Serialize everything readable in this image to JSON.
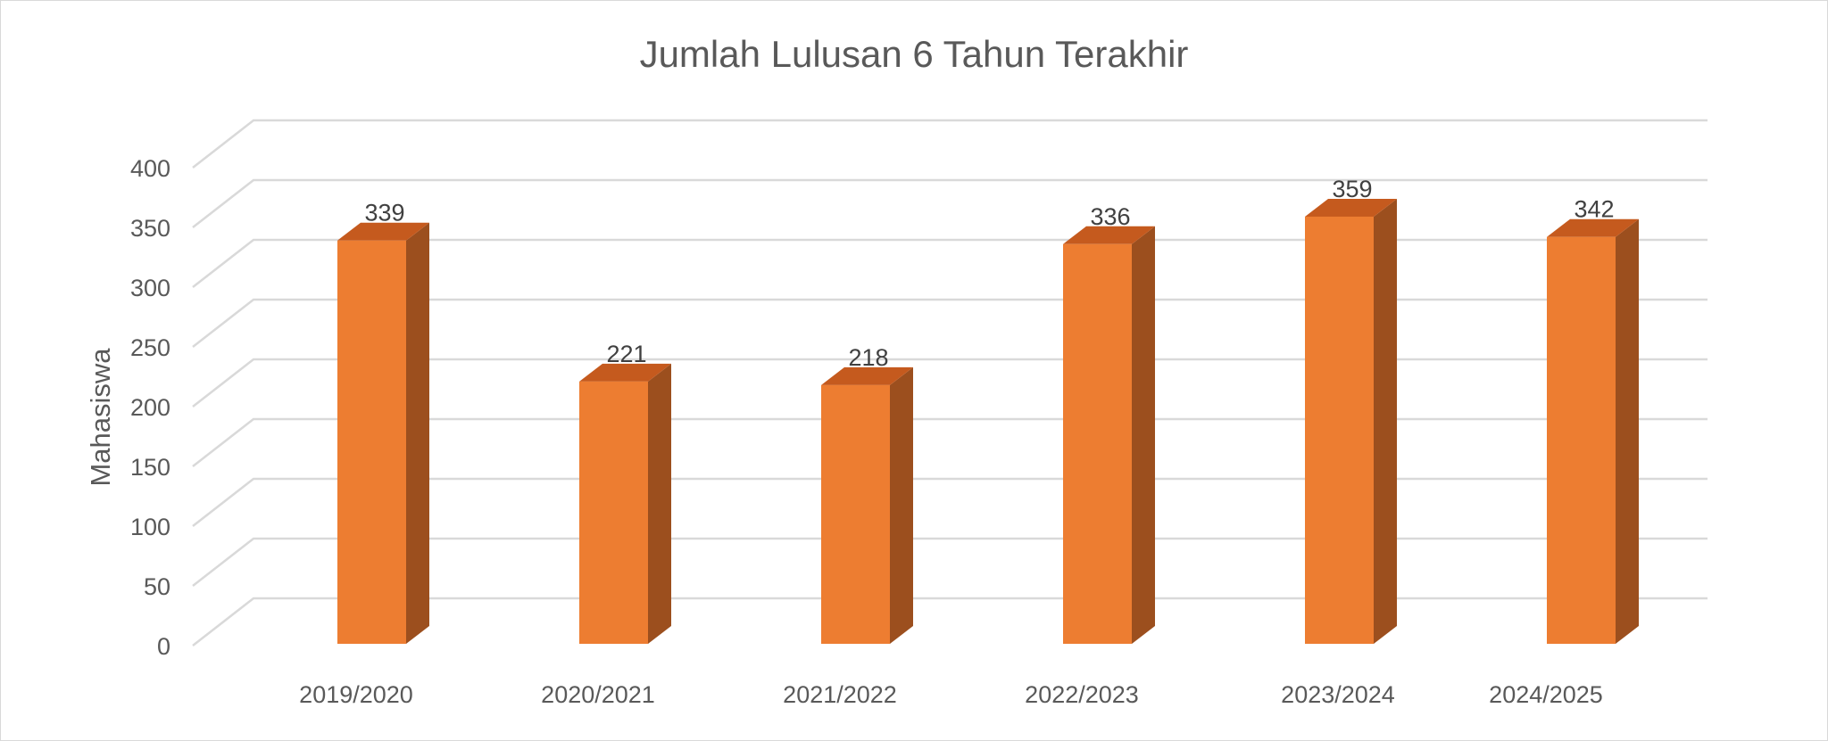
{
  "chart_data": {
    "type": "bar",
    "title": "Jumlah Lulusan 6 Tahun Terakhir",
    "xlabel": "",
    "ylabel": "Mahasiswa",
    "categories": [
      "2019/2020",
      "2020/2021",
      "2021/2022",
      "2022/2023",
      "2023/2024",
      "2024/2025"
    ],
    "values": [
      339,
      221,
      218,
      336,
      359,
      342
    ],
    "ylim": [
      0,
      400
    ],
    "yticks": [
      "0",
      "50",
      "100",
      "150",
      "200",
      "250",
      "300",
      "350",
      "400"
    ],
    "data_labels": [
      "339",
      "221",
      "218",
      "336",
      "359",
      "342"
    ],
    "style": "3d-column",
    "grid": true,
    "legend": "none",
    "colors": {
      "bar_front": "#ED7D31",
      "bar_top": "#C55A1E",
      "bar_side": "#9C4F1E",
      "grid": "#D9D9D9",
      "text": "#595959"
    }
  }
}
